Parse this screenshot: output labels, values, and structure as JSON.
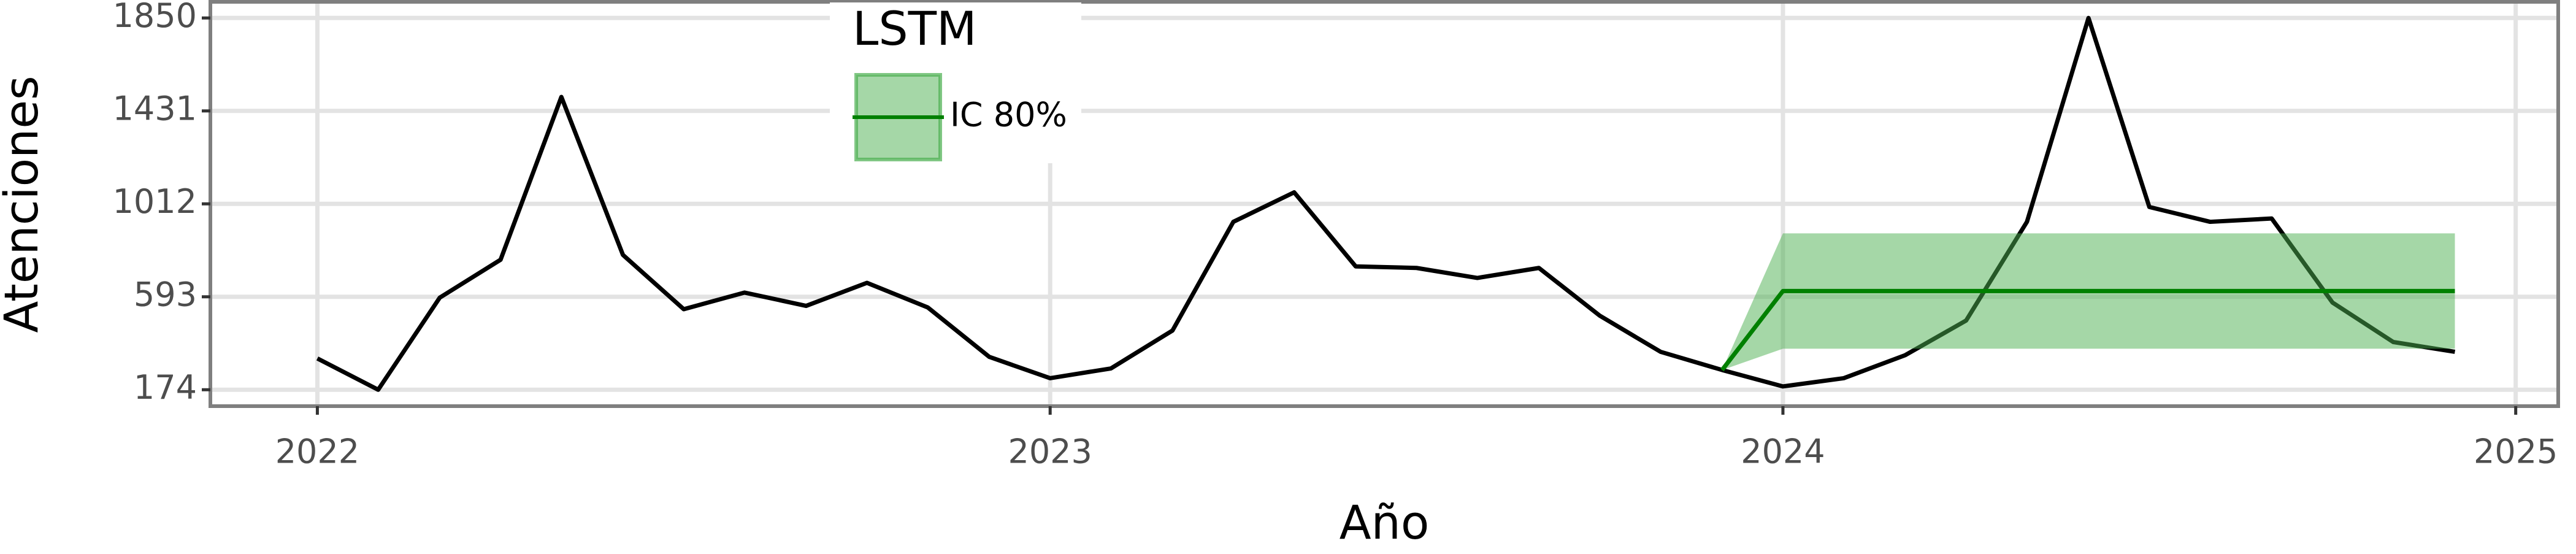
{
  "chart_data": {
    "type": "line",
    "x_label": "Año",
    "y_label": "Atenciones",
    "legend_title": "LSTM",
    "xlim": [
      2021.854,
      2025.058
    ],
    "xticks": [
      2022,
      2023,
      2024,
      2025
    ],
    "ylim": [
      100,
      1920
    ],
    "yticks": [
      174,
      593,
      1012,
      1431,
      1850
    ],
    "grid": true,
    "series": [
      {
        "color": "#000000",
        "x": [
          2022.0,
          2022.083,
          2022.167,
          2022.25,
          2022.333,
          2022.417,
          2022.5,
          2022.583,
          2022.667,
          2022.75,
          2022.833,
          2022.917,
          2023.0,
          2023.083,
          2023.167,
          2023.25,
          2023.333,
          2023.417,
          2023.5,
          2023.583,
          2023.667,
          2023.75,
          2023.833,
          2023.917,
          2024.0,
          2024.083,
          2024.167,
          2024.25,
          2024.333,
          2024.417,
          2024.5,
          2024.583,
          2024.667,
          2024.75,
          2024.833,
          2024.917
        ],
        "values": [
          315,
          174,
          589,
          760,
          1494,
          782,
          537,
          612,
          552,
          656,
          545,
          322,
          226,
          270,
          441,
          931,
          1064,
          730,
          723,
          678,
          723,
          508,
          345,
          263,
          189,
          226,
          330,
          486,
          931,
          1850,
          998,
          931,
          946,
          567,
          389,
          345
        ]
      },
      {
        "name": "IC 80%",
        "color": "#008000",
        "band_color": "#4caf50",
        "x": [
          2023.917,
          2024.0,
          2024.083,
          2024.167,
          2024.25,
          2024.333,
          2024.417,
          2024.5,
          2024.583,
          2024.667,
          2024.75,
          2024.833,
          2024.917
        ],
        "values": [
          263,
          619,
          619,
          619,
          619,
          619,
          619,
          619,
          619,
          619,
          619,
          619,
          619
        ],
        "lower": [
          263,
          359,
          359,
          359,
          359,
          359,
          359,
          359,
          359,
          359,
          359,
          359,
          359
        ],
        "upper": [
          263,
          879,
          879,
          879,
          879,
          879,
          879,
          879,
          879,
          879,
          879,
          879,
          879
        ]
      }
    ]
  }
}
